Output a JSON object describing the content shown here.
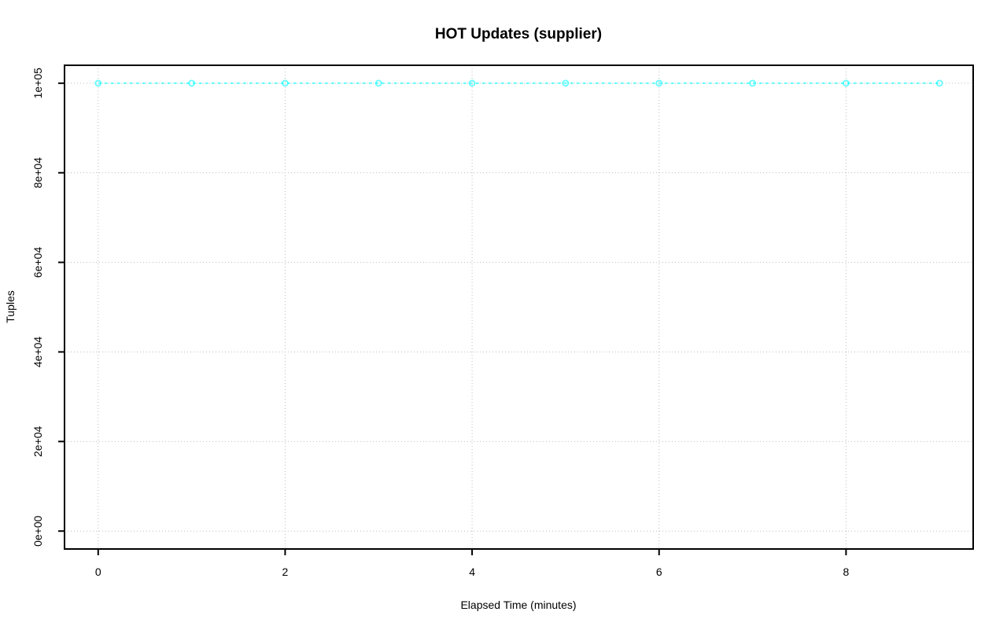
{
  "chart_data": {
    "type": "line",
    "title": "HOT Updates (supplier)",
    "xlabel": "Elapsed Time (minutes)",
    "ylabel": "Tuples",
    "x": [
      0,
      1,
      2,
      3,
      4,
      5,
      6,
      7,
      8,
      9
    ],
    "series": [
      {
        "name": "supplier",
        "values": [
          100000,
          100000,
          100000,
          100000,
          100000,
          100000,
          100000,
          100000,
          100000,
          100000
        ],
        "color": "#00ffff",
        "line_style": "dashed",
        "marker": "open-circle"
      }
    ],
    "xlim": [
      0,
      9
    ],
    "ylim": [
      0,
      100000
    ],
    "xticks": [
      0,
      2,
      4,
      6,
      8
    ],
    "xtick_labels": [
      "0",
      "2",
      "4",
      "6",
      "8"
    ],
    "ytick_values": [
      0,
      20000,
      40000,
      60000,
      80000,
      100000
    ],
    "ytick_labels": [
      "0e+00",
      "2e+04",
      "4e+04",
      "6e+04",
      "8e+04",
      "1e+05"
    ],
    "grid": true,
    "grid_style": "dotted",
    "grid_color": "#bdbdbd",
    "axis_color": "#000000",
    "background": "#ffffff",
    "legend": "none"
  }
}
